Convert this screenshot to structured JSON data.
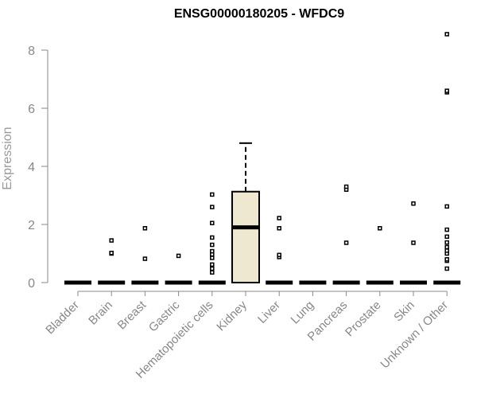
{
  "chart_data": {
    "type": "box",
    "title": "ENSG00000180205 - WFDC9",
    "xlabel": "",
    "ylabel": "Expression",
    "ylim": [
      0,
      8.6
    ],
    "yticks": [
      0,
      2,
      4,
      6,
      8
    ],
    "ytick_labels": [
      "0",
      "2",
      "4",
      "6",
      "8"
    ],
    "grid": false,
    "box_fill": "#EEE8D0",
    "categories": [
      "Bladder",
      "Brain",
      "Breast",
      "Gastric",
      "Hematopoietic cells",
      "Kidney",
      "Liver",
      "Lung",
      "Pancreas",
      "Prostate",
      "Skin",
      "Unknown / Other"
    ],
    "boxes": [
      {
        "category": "Bladder",
        "q1": 0,
        "median": 0,
        "q3": 0,
        "whisker_low": 0,
        "whisker_high": 0,
        "outliers": []
      },
      {
        "category": "Brain",
        "q1": 0,
        "median": 0,
        "q3": 0,
        "whisker_low": 0,
        "whisker_high": 0,
        "outliers": [
          1.0,
          1.02,
          1.45
        ]
      },
      {
        "category": "Breast",
        "q1": 0,
        "median": 0,
        "q3": 0,
        "whisker_low": 0,
        "whisker_high": 0,
        "outliers": [
          0.82,
          1.87
        ]
      },
      {
        "category": "Gastric",
        "q1": 0,
        "median": 0,
        "q3": 0,
        "whisker_low": 0,
        "whisker_high": 0,
        "outliers": [
          0.92
        ]
      },
      {
        "category": "Hematopoietic cells",
        "q1": 0,
        "median": 0,
        "q3": 0,
        "whisker_low": 0,
        "whisker_high": 0,
        "outliers": [
          0.35,
          0.48,
          0.62,
          0.85,
          0.97,
          1.08,
          1.3,
          1.55,
          2.05,
          2.6,
          3.03
        ]
      },
      {
        "category": "Kidney",
        "q1": 0,
        "median": 1.9,
        "q3": 3.13,
        "whisker_low": 0,
        "whisker_high": 4.8,
        "outliers": []
      },
      {
        "category": "Liver",
        "q1": 0,
        "median": 0,
        "q3": 0,
        "whisker_low": 0,
        "whisker_high": 0,
        "outliers": [
          0.88,
          0.95,
          1.87,
          2.22
        ]
      },
      {
        "category": "Lung",
        "q1": 0,
        "median": 0,
        "q3": 0,
        "whisker_low": 0,
        "whisker_high": 0,
        "outliers": []
      },
      {
        "category": "Pancreas",
        "q1": 0,
        "median": 0,
        "q3": 0,
        "whisker_low": 0,
        "whisker_high": 0,
        "outliers": [
          1.37,
          3.2,
          3.3
        ]
      },
      {
        "category": "Prostate",
        "q1": 0,
        "median": 0,
        "q3": 0,
        "whisker_low": 0,
        "whisker_high": 0,
        "outliers": [
          1.87
        ]
      },
      {
        "category": "Skin",
        "q1": 0,
        "median": 0,
        "q3": 0,
        "whisker_low": 0,
        "whisker_high": 0,
        "outliers": [
          1.37,
          2.72
        ]
      },
      {
        "category": "Unknown / Other",
        "q1": 0,
        "median": 0,
        "q3": 0,
        "whisker_low": 0,
        "whisker_high": 0,
        "outliers": [
          0.48,
          0.75,
          0.8,
          1.0,
          1.1,
          1.22,
          1.38,
          1.58,
          1.82,
          2.62,
          6.55,
          6.6,
          8.55
        ]
      }
    ]
  }
}
